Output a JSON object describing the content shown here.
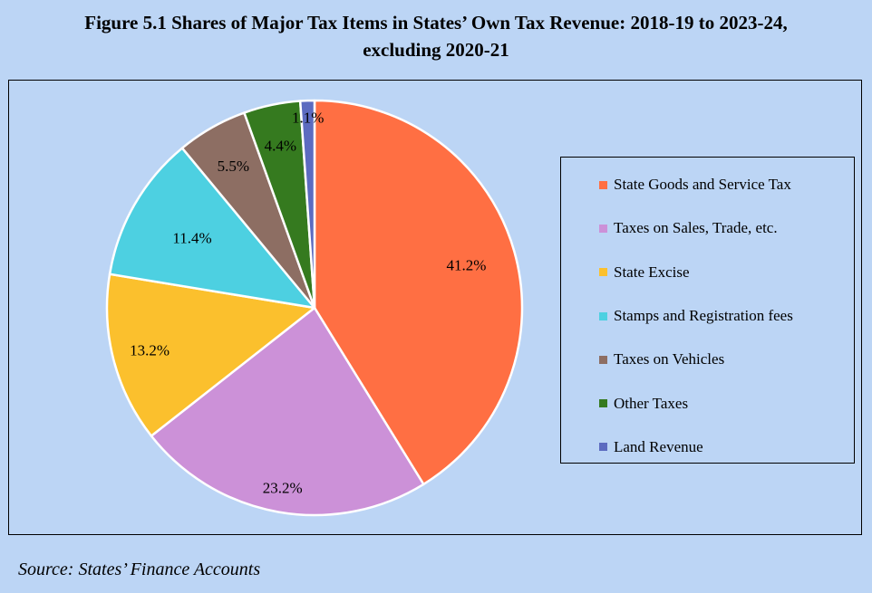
{
  "title_line1": "Figure 5.1 Shares of Major Tax Items in States’ Own Tax Revenue: 2018-19 to 2023-24,",
  "title_line2": "excluding 2020-21",
  "source": "Source: States’ Finance Accounts",
  "chart_data": {
    "type": "pie",
    "title": "Figure 5.1 Shares of Major Tax Items in States’ Own Tax Revenue: 2018-19 to 2023-24, excluding 2020-21",
    "categories": [
      "State Goods and Service Tax",
      "Taxes on Sales, Trade, etc.",
      "State Excise",
      "Stamps and Registration fees",
      "Taxes on Vehicles",
      "Other Taxes",
      "Land Revenue"
    ],
    "values": [
      41.2,
      23.2,
      13.2,
      11.4,
      5.5,
      4.4,
      1.1
    ],
    "labels": [
      "41.2%",
      "23.2%",
      "13.2%",
      "11.4%",
      "5.5%",
      "4.4%",
      "1.1%"
    ],
    "colors": [
      "#ff6f43",
      "#cc91d8",
      "#fbc02d",
      "#4dd0e1",
      "#8d6e63",
      "#357a1f",
      "#5c6bc0"
    ],
    "legend_position": "right",
    "start_angle_deg": 0,
    "direction": "clockwise"
  }
}
